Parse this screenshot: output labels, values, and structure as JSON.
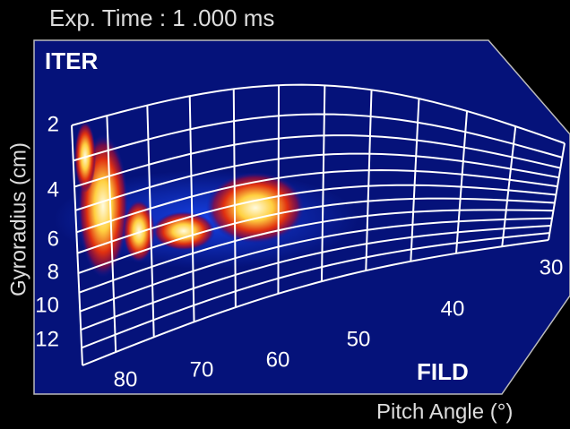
{
  "header": {
    "title": "Exp. Time : 1 .000 ms"
  },
  "image": {
    "top_left_label": "ITER",
    "bottom_right_label": "FILD",
    "y_axis_label": "Gyroradius (cm)",
    "x_axis_label": "Pitch Angle (°)",
    "gyroradius_ticks": [
      2,
      4,
      6,
      8,
      10,
      12
    ],
    "pitch_ticks": [
      80,
      70,
      60,
      50,
      40,
      30
    ]
  }
}
